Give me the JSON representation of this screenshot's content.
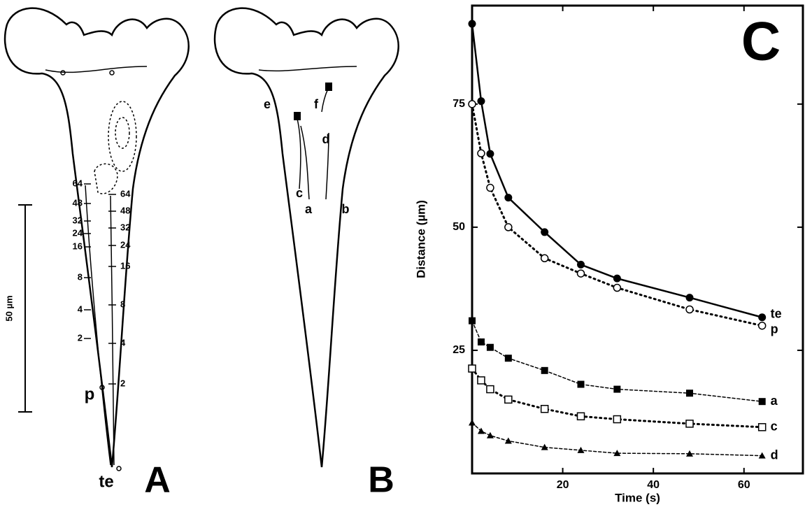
{
  "panel_a": {
    "label": "A",
    "scale_bar": "50 µm",
    "left_marks": [
      "64",
      "48",
      "32",
      "24",
      "16",
      "8",
      "4",
      "2"
    ],
    "right_marks": [
      "64",
      "48",
      "32",
      "24",
      "16",
      "8",
      "4",
      "2"
    ],
    "p": "p",
    "te": "te"
  },
  "panel_b": {
    "label": "B",
    "points": [
      "e",
      "f",
      "d",
      "c",
      "a",
      "b"
    ]
  },
  "chart_data": {
    "type": "line",
    "title": "C",
    "x_label": "Time (s)",
    "y_label": "Distance (µm)",
    "x": [
      0,
      2,
      4,
      8,
      16,
      24,
      32,
      48,
      64
    ],
    "series": [
      {
        "name": "te",
        "color": "#000000",
        "marker": "filled-circle",
        "dash": "solid",
        "values": [
          91.3,
          75.6,
          64.9,
          56,
          49,
          42.4,
          39.6,
          35.7,
          31.7
        ]
      },
      {
        "name": "p",
        "color": "#000000",
        "marker": "open-circle",
        "dash": "dotted",
        "values": [
          75,
          65,
          58,
          50,
          43.7,
          40.6,
          37.7,
          33.3,
          30
        ]
      },
      {
        "name": "a",
        "color": "#000000",
        "marker": "filled-square",
        "dash": "dashed",
        "values": [
          31,
          26.7,
          25.6,
          23.4,
          20.9,
          18.1,
          17.1,
          16.3,
          14.6
        ]
      },
      {
        "name": "c",
        "color": "#000000",
        "marker": "open-square",
        "dash": "dotted",
        "values": [
          21.3,
          18.9,
          17.1,
          15,
          13.1,
          11.6,
          11,
          10.1,
          9.4
        ]
      },
      {
        "name": "d",
        "color": "#000000",
        "marker": "filled-triangle",
        "dash": "dashed",
        "values": [
          10.3,
          8.6,
          7.7,
          6.6,
          5.3,
          4.7,
          4.1,
          4,
          3.6
        ]
      }
    ],
    "xlim": [
      0,
      73
    ],
    "ylim": [
      0,
      95
    ],
    "xticks": [
      20,
      40,
      60
    ],
    "yticks": [
      25,
      50,
      75
    ]
  }
}
